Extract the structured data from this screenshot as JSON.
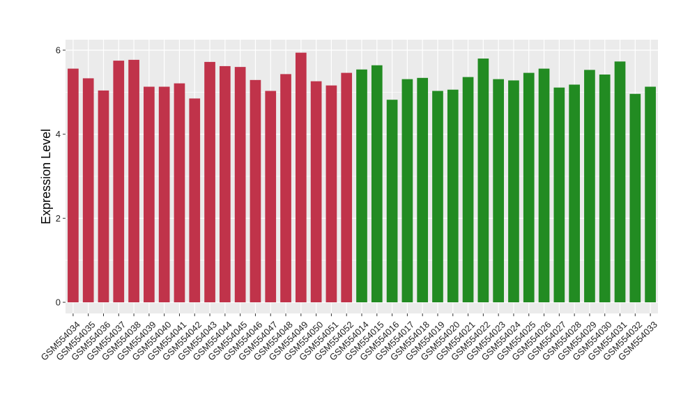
{
  "chart_data": {
    "type": "bar",
    "title": "",
    "xlabel": "",
    "ylabel": "Expression Level",
    "ylim": [
      0,
      6.2
    ],
    "yticks": [
      0,
      2,
      4,
      6
    ],
    "grid": true,
    "colors": {
      "group_1": "#c0334a",
      "group_2": "#228b22",
      "panel": "#ebebeb",
      "grid": "#ffffff"
    },
    "categories": [
      "GSM554034",
      "GSM554035",
      "GSM554036",
      "GSM554037",
      "GSM554038",
      "GSM554039",
      "GSM554040",
      "GSM554041",
      "GSM554042",
      "GSM554043",
      "GSM554044",
      "GSM554045",
      "GSM554046",
      "GSM554047",
      "GSM554048",
      "GSM554049",
      "GSM554050",
      "GSM554051",
      "GSM554052",
      "GSM554014",
      "GSM554015",
      "GSM554016",
      "GSM554017",
      "GSM554018",
      "GSM554019",
      "GSM554020",
      "GSM554021",
      "GSM554022",
      "GSM554023",
      "GSM554024",
      "GSM554025",
      "GSM554026",
      "GSM554027",
      "GSM554028",
      "GSM554029",
      "GSM554030",
      "GSM554031",
      "GSM554032",
      "GSM554033"
    ],
    "values": [
      5.56,
      5.33,
      5.04,
      5.75,
      5.77,
      5.13,
      5.13,
      5.21,
      4.85,
      5.72,
      5.62,
      5.6,
      5.29,
      5.03,
      5.43,
      5.94,
      5.26,
      5.16,
      5.46,
      5.54,
      5.64,
      4.82,
      5.31,
      5.34,
      5.03,
      5.06,
      5.36,
      5.8,
      5.31,
      5.28,
      5.46,
      5.56,
      5.11,
      5.18,
      5.53,
      5.42,
      5.73,
      4.96,
      5.13
    ],
    "bar_groups": [
      "group_1",
      "group_1",
      "group_1",
      "group_1",
      "group_1",
      "group_1",
      "group_1",
      "group_1",
      "group_1",
      "group_1",
      "group_1",
      "group_1",
      "group_1",
      "group_1",
      "group_1",
      "group_1",
      "group_1",
      "group_1",
      "group_1",
      "group_2",
      "group_2",
      "group_2",
      "group_2",
      "group_2",
      "group_2",
      "group_2",
      "group_2",
      "group_2",
      "group_2",
      "group_2",
      "group_2",
      "group_2",
      "group_2",
      "group_2",
      "group_2",
      "group_2",
      "group_2",
      "group_2",
      "group_2"
    ]
  }
}
